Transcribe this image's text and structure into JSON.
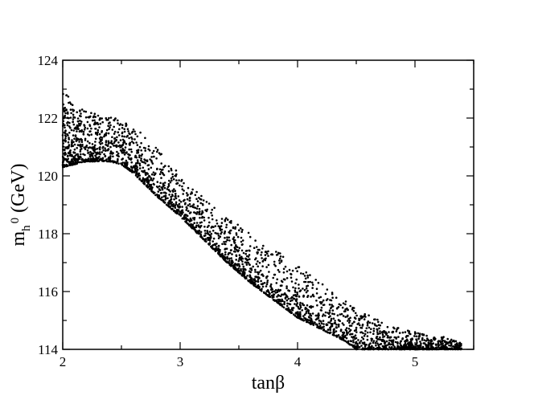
{
  "chart_data": {
    "type": "scatter",
    "title": "",
    "xlabel": {
      "text": "tanβ"
    },
    "ylabel": {
      "main": "m",
      "sub": "h",
      "sup": "0",
      "unit": "(GeV)"
    },
    "xlim": [
      2,
      5.5
    ],
    "ylim": [
      114,
      124
    ],
    "xticks": [
      2,
      3,
      4,
      5
    ],
    "yticks": [
      114,
      116,
      118,
      120,
      122,
      124
    ],
    "grid": false,
    "legend": "none",
    "marker_color": "#000000",
    "band": {
      "x_start": 2.0,
      "x_end": 5.4,
      "lower_edge": [
        [
          2.0,
          120.3
        ],
        [
          2.2,
          120.5
        ],
        [
          2.4,
          120.5
        ],
        [
          2.5,
          120.4
        ],
        [
          2.6,
          120.1
        ],
        [
          2.8,
          119.3
        ],
        [
          3.0,
          118.6
        ],
        [
          3.2,
          117.8
        ],
        [
          3.4,
          117.0
        ],
        [
          3.6,
          116.3
        ],
        [
          3.8,
          115.7
        ],
        [
          4.0,
          115.1
        ],
        [
          4.2,
          114.7
        ],
        [
          4.4,
          114.3
        ],
        [
          4.5,
          114.0
        ]
      ],
      "upper_edge": [
        [
          2.0,
          123.0
        ],
        [
          2.1,
          122.5
        ],
        [
          2.3,
          122.1
        ],
        [
          2.5,
          122.0
        ],
        [
          2.7,
          121.4
        ],
        [
          2.9,
          120.5
        ],
        [
          3.1,
          119.6
        ],
        [
          3.3,
          118.9
        ],
        [
          3.5,
          118.3
        ],
        [
          3.7,
          117.7
        ],
        [
          3.9,
          117.2
        ],
        [
          4.1,
          116.6
        ],
        [
          4.3,
          116.0
        ],
        [
          4.5,
          115.4
        ],
        [
          4.7,
          115.0
        ],
        [
          4.9,
          114.7
        ],
        [
          5.1,
          114.5
        ],
        [
          5.3,
          114.4
        ],
        [
          5.4,
          114.2
        ]
      ]
    }
  }
}
